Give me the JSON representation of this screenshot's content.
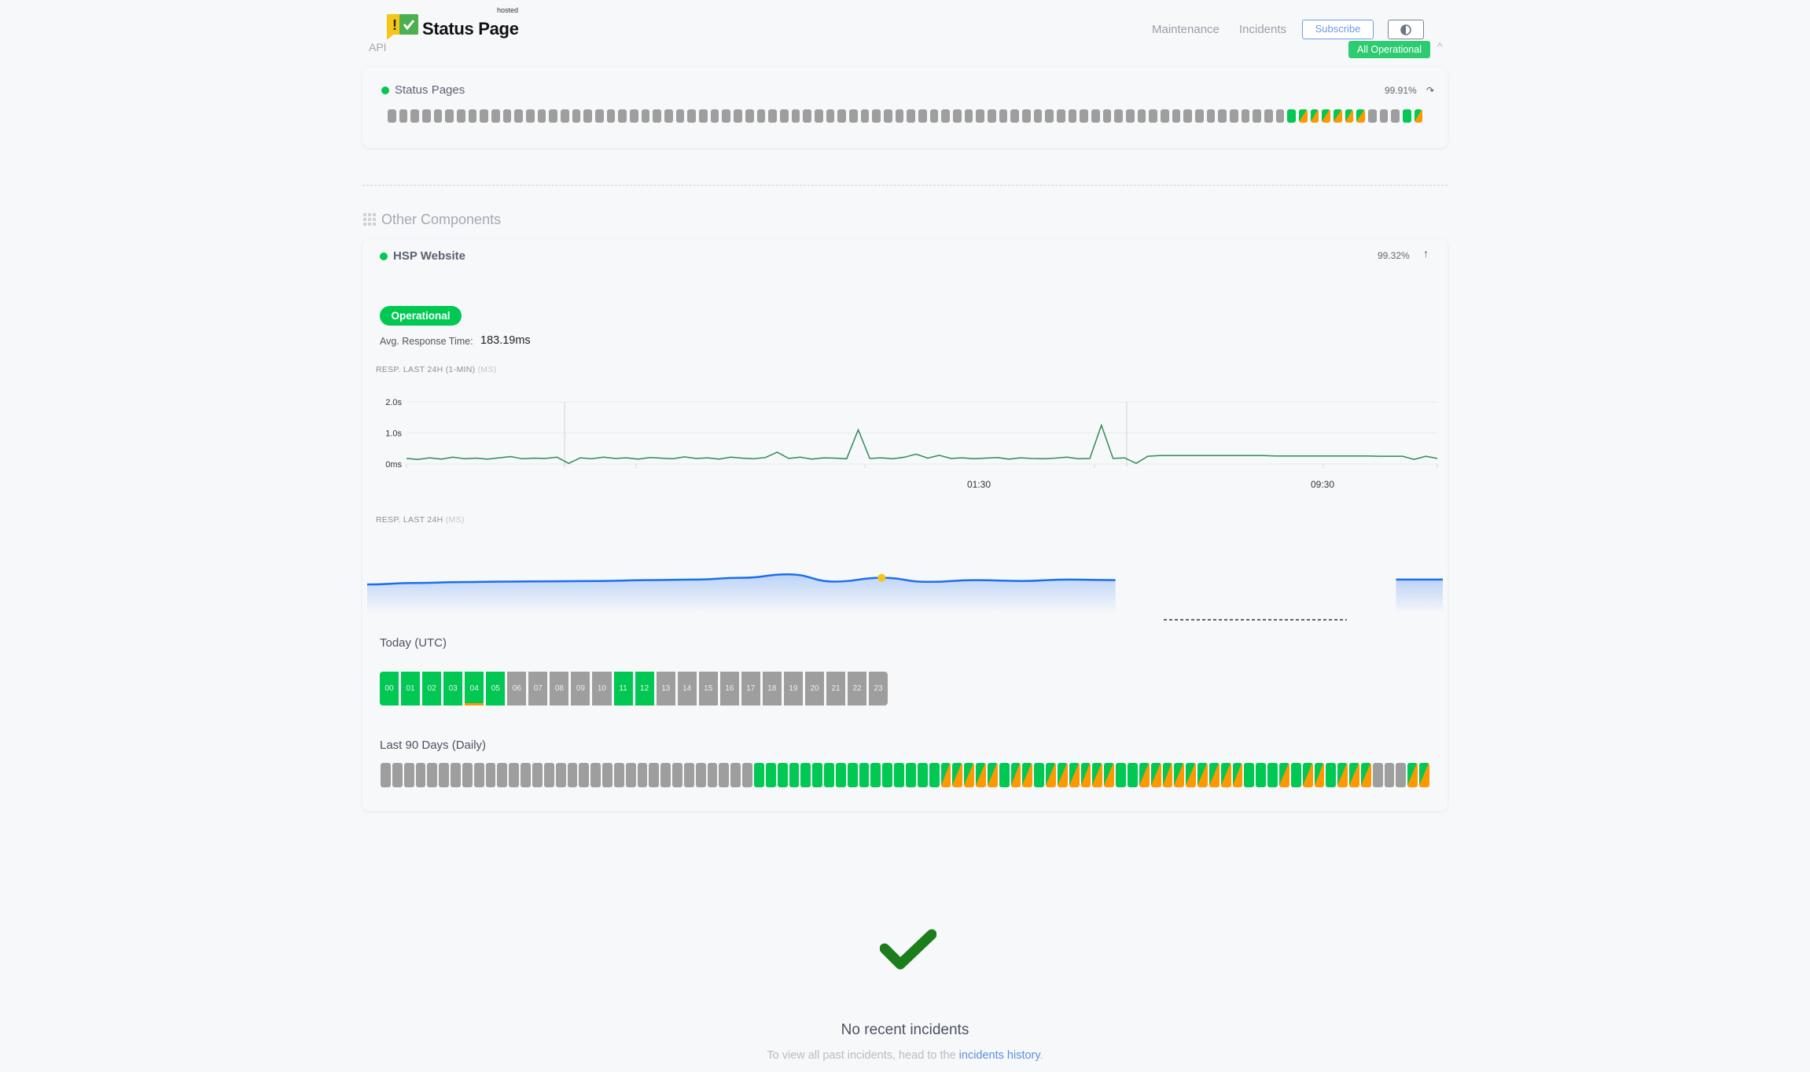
{
  "header": {
    "brand": "Status Page",
    "brand_sup": "hosted",
    "section": "API",
    "nav": [
      "Maintenance",
      "Incidents"
    ],
    "subscribe": "Subscribe",
    "theme_icon": "contrast-icon",
    "overall_status": "All Operational"
  },
  "colors": {
    "up": "#00c853",
    "partial": "#ff9800",
    "nodata": "#9e9e9e",
    "chart_line": "#2e8b57",
    "avg_line": "#1a6ff0",
    "marker": "#f5c518",
    "brand_green": "#4caf50",
    "brand_yellow": "#f5c518"
  },
  "status_pages": {
    "name": "Status Pages",
    "uptime": "99.91%",
    "states": [
      "x",
      "x",
      "x",
      "x",
      "x",
      "x",
      "x",
      "x",
      "x",
      "x",
      "x",
      "x",
      "x",
      "x",
      "x",
      "x",
      "x",
      "x",
      "x",
      "x",
      "x",
      "x",
      "x",
      "x",
      "x",
      "x",
      "x",
      "x",
      "x",
      "x",
      "x",
      "x",
      "x",
      "x",
      "x",
      "x",
      "x",
      "x",
      "x",
      "x",
      "x",
      "x",
      "x",
      "x",
      "x",
      "x",
      "x",
      "x",
      "x",
      "x",
      "x",
      "x",
      "x",
      "x",
      "x",
      "x",
      "x",
      "x",
      "x",
      "x",
      "x",
      "x",
      "x",
      "x",
      "x",
      "x",
      "x",
      "x",
      "x",
      "x",
      "x",
      "x",
      "x",
      "x",
      "x",
      "x",
      "x",
      "x",
      "g",
      "p",
      "p",
      "p",
      "p",
      "p",
      "p",
      "x",
      "x",
      "x",
      "g",
      "p"
    ]
  },
  "other": {
    "title": "Other Components"
  },
  "hsp": {
    "name": "HSP Website",
    "uptime": "99.32%",
    "status": "Operational",
    "avg_label": "Avg. Response Time:",
    "avg_value": "183.19ms",
    "chart1_title": "RESP. LAST 24H (1-MIN)",
    "chart1_unit": "(MS)",
    "chart2_title": "RESP. LAST 24H",
    "chart2_unit": "(MS)",
    "today_title": "Today (UTC)",
    "hours": [
      {
        "l": "00",
        "s": "g"
      },
      {
        "l": "01",
        "s": "g"
      },
      {
        "l": "02",
        "s": "g"
      },
      {
        "l": "03",
        "s": "g"
      },
      {
        "l": "04",
        "s": "g",
        "warn": true
      },
      {
        "l": "05",
        "s": "g"
      },
      {
        "l": "06",
        "s": "x"
      },
      {
        "l": "07",
        "s": "x"
      },
      {
        "l": "08",
        "s": "x"
      },
      {
        "l": "09",
        "s": "x"
      },
      {
        "l": "10",
        "s": "x"
      },
      {
        "l": "11",
        "s": "g"
      },
      {
        "l": "12",
        "s": "g"
      },
      {
        "l": "13",
        "s": "x"
      },
      {
        "l": "14",
        "s": "x"
      },
      {
        "l": "15",
        "s": "x"
      },
      {
        "l": "16",
        "s": "x"
      },
      {
        "l": "17",
        "s": "x"
      },
      {
        "l": "18",
        "s": "x"
      },
      {
        "l": "19",
        "s": "x"
      },
      {
        "l": "20",
        "s": "x"
      },
      {
        "l": "21",
        "s": "x"
      },
      {
        "l": "22",
        "s": "x"
      },
      {
        "l": "23",
        "s": "x"
      }
    ],
    "days_title": "Last 90 Days (Daily)",
    "days": [
      "x",
      "x",
      "x",
      "x",
      "x",
      "x",
      "x",
      "x",
      "x",
      "x",
      "x",
      "x",
      "x",
      "x",
      "x",
      "x",
      "x",
      "x",
      "x",
      "x",
      "x",
      "x",
      "x",
      "x",
      "x",
      "x",
      "x",
      "x",
      "x",
      "x",
      "x",
      "x",
      "g",
      "g",
      "g",
      "g",
      "g",
      "g",
      "g",
      "g",
      "g",
      "g",
      "g",
      "g",
      "g",
      "g",
      "g",
      "g",
      "p",
      "p",
      "p",
      "p",
      "p",
      "g",
      "p",
      "p",
      "g",
      "p",
      "p",
      "p",
      "p",
      "p",
      "p",
      "g",
      "g",
      "p",
      "p",
      "p",
      "p",
      "p",
      "p",
      "p",
      "p",
      "p",
      "g",
      "g",
      "g",
      "p",
      "g",
      "p",
      "p",
      "g",
      "p",
      "p",
      "p",
      "x",
      "x",
      "x",
      "p",
      "p"
    ]
  },
  "chart_data": [
    {
      "type": "line",
      "title": "",
      "yticks": [
        "0ms",
        "1.0s",
        "2.0s"
      ],
      "ylim": [
        0,
        2.0
      ],
      "xticks": [
        "01:30",
        "09:30"
      ],
      "grid": true,
      "values": [
        0.18,
        0.15,
        0.2,
        0.16,
        0.22,
        0.17,
        0.19,
        0.16,
        0.2,
        0.24,
        0.17,
        0.19,
        0.18,
        0.22,
        0.02,
        0.2,
        0.17,
        0.22,
        0.18,
        0.2,
        0.16,
        0.21,
        0.19,
        0.17,
        0.23,
        0.18,
        0.2,
        0.16,
        0.22,
        0.19,
        0.17,
        0.21,
        0.38,
        0.18,
        0.22,
        0.16,
        0.2,
        0.19,
        0.17,
        1.1,
        0.18,
        0.2,
        0.17,
        0.22,
        0.32,
        0.19,
        0.28,
        0.18,
        0.2,
        0.17,
        0.19,
        0.21,
        0.16,
        0.2,
        0.18,
        0.17,
        0.19,
        0.22,
        0.17,
        0.18,
        1.25,
        0.18,
        0.2,
        0.02,
        0.25,
        0.27,
        0.27,
        0.27,
        0.27,
        0.27,
        0.27,
        0.27,
        0.27,
        0.27,
        0.27,
        0.26,
        0.26,
        0.26,
        0.26,
        0.26,
        0.26,
        0.26,
        0.26,
        0.26,
        0.25,
        0.25,
        0.25,
        0.15,
        0.25,
        0.18
      ]
    },
    {
      "type": "area",
      "title": "",
      "values": [
        155,
        160,
        163,
        165,
        166,
        167,
        170,
        172,
        178,
        190,
        165,
        178,
        164,
        170,
        167,
        172,
        170,
        null,
        null,
        null,
        null,
        null,
        172,
        172
      ],
      "highlight_index": 11
    }
  ],
  "incidents": {
    "title": "No recent incidents",
    "text": "To view all past incidents, head to the",
    "link": "incidents history",
    "period": "."
  }
}
